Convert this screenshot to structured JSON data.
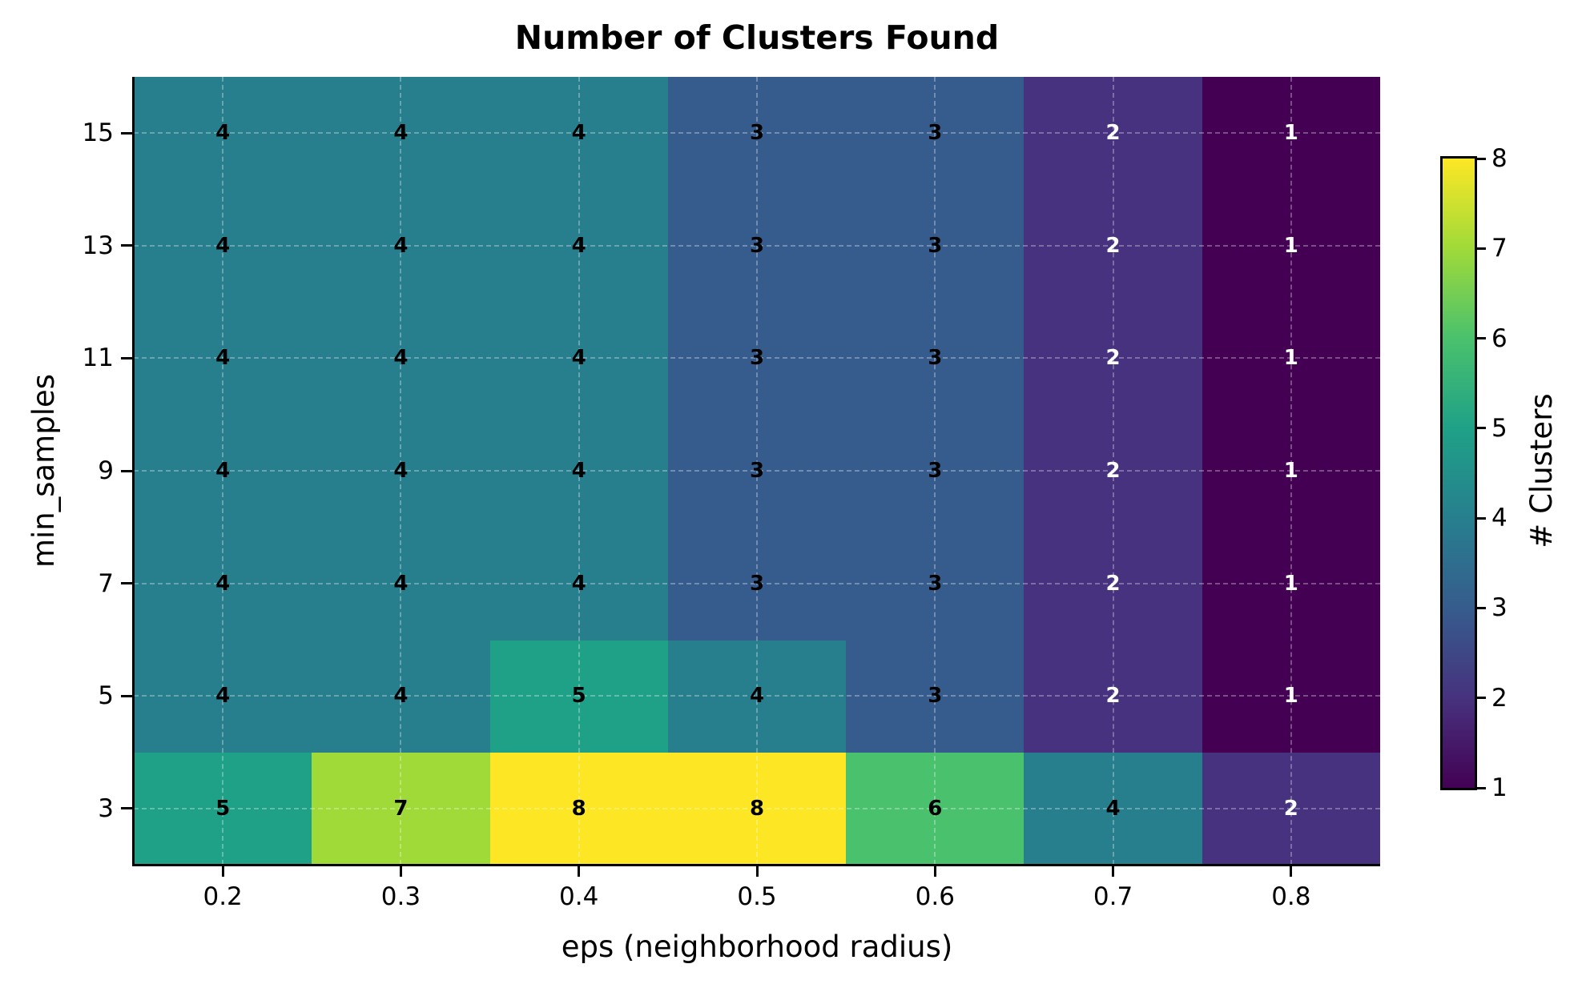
{
  "chart_data": {
    "type": "heatmap",
    "title": "Number of Clusters Found",
    "xlabel": "eps (neighborhood radius)",
    "ylabel": "min_samples",
    "x": [
      0.2,
      0.3,
      0.4,
      0.5,
      0.6,
      0.7,
      0.8
    ],
    "x_tick_labels": [
      "0.2",
      "0.3",
      "0.4",
      "0.5",
      "0.6",
      "0.7",
      "0.8"
    ],
    "y": [
      3,
      5,
      7,
      9,
      11,
      13,
      15
    ],
    "y_tick_labels": [
      "3",
      "5",
      "7",
      "9",
      "11",
      "13",
      "15"
    ],
    "xlim": [
      0.15,
      0.85
    ],
    "ylim": [
      2,
      16
    ],
    "values": [
      [
        5,
        7,
        8,
        8,
        6,
        4,
        2
      ],
      [
        4,
        4,
        5,
        4,
        3,
        2,
        1
      ],
      [
        4,
        4,
        4,
        3,
        3,
        2,
        1
      ],
      [
        4,
        4,
        4,
        3,
        3,
        2,
        1
      ],
      [
        4,
        4,
        4,
        3,
        3,
        2,
        1
      ],
      [
        4,
        4,
        4,
        3,
        3,
        2,
        1
      ],
      [
        4,
        4,
        4,
        3,
        3,
        2,
        1
      ]
    ],
    "values_row_order": "rows indexed by y ascending (min_samples 3 first)",
    "colormap": "viridis",
    "colorbar": {
      "label": "# Clusters",
      "range": [
        1,
        8
      ],
      "ticks": [
        "1",
        "2",
        "3",
        "4",
        "5",
        "6",
        "7",
        "8"
      ]
    },
    "grid": true,
    "grid_style": "dashed",
    "annotations": "cell values shown in bold; white text for values 1-2, black otherwise"
  },
  "colors": {
    "1": "#440154",
    "2": "#46327e",
    "3": "#365c8d",
    "4": "#277f8e",
    "5": "#1fa187",
    "6": "#4ac16d",
    "7": "#a0da39",
    "8": "#fde725"
  }
}
